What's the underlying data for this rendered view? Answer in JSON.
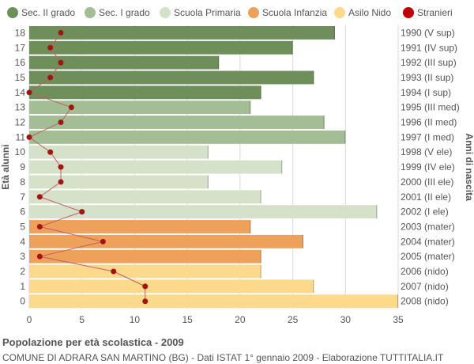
{
  "chart_data": {
    "type": "bar",
    "orientation": "horizontal",
    "title": "Popolazione per età scolastica - 2009",
    "subtitle": "COMUNE DI ADRARA SAN MARTINO (BG) - Dati ISTAT 1° gennaio 2009 - Elaborazione TUTTITALIA.IT",
    "ylabel": "Età alunni",
    "ylabel_right": "Anni di nascita",
    "xlim": [
      0,
      35
    ],
    "xticks": [
      0,
      5,
      10,
      15,
      20,
      25,
      30,
      35
    ],
    "grid": true,
    "legend_position": "top",
    "legend": [
      {
        "label": "Sec. II grado",
        "color": "#6e8f5a"
      },
      {
        "label": "Sec. I grado",
        "color": "#a3bd94"
      },
      {
        "label": "Scuola Primaria",
        "color": "#d5e1c8"
      },
      {
        "label": "Scuola Infanzia",
        "color": "#eda15a"
      },
      {
        "label": "Asilo Nido",
        "color": "#fdd98c"
      },
      {
        "label": "Stranieri",
        "color": "#c00000"
      }
    ],
    "rows": [
      {
        "age": "18",
        "birth": "1990 (V sup)",
        "value": 29,
        "stranieri": 3,
        "group": 0
      },
      {
        "age": "17",
        "birth": "1991 (IV sup)",
        "value": 25,
        "stranieri": 2,
        "group": 0
      },
      {
        "age": "16",
        "birth": "1992 (III sup)",
        "value": 18,
        "stranieri": 3,
        "group": 0
      },
      {
        "age": "15",
        "birth": "1993 (II sup)",
        "value": 27,
        "stranieri": 2,
        "group": 0
      },
      {
        "age": "14",
        "birth": "1994 (I sup)",
        "value": 22,
        "stranieri": 0,
        "group": 0
      },
      {
        "age": "13",
        "birth": "1995 (III med)",
        "value": 21,
        "stranieri": 4,
        "group": 1
      },
      {
        "age": "12",
        "birth": "1996 (II med)",
        "value": 28,
        "stranieri": 3,
        "group": 1
      },
      {
        "age": "11",
        "birth": "1997 (I med)",
        "value": 30,
        "stranieri": 0,
        "group": 1
      },
      {
        "age": "10",
        "birth": "1998 (V ele)",
        "value": 17,
        "stranieri": 2,
        "group": 2
      },
      {
        "age": "9",
        "birth": "1999 (IV ele)",
        "value": 24,
        "stranieri": 3,
        "group": 2
      },
      {
        "age": "8",
        "birth": "2000 (III ele)",
        "value": 17,
        "stranieri": 3,
        "group": 2
      },
      {
        "age": "7",
        "birth": "2001 (II ele)",
        "value": 22,
        "stranieri": 1,
        "group": 2
      },
      {
        "age": "6",
        "birth": "2002 (I ele)",
        "value": 33,
        "stranieri": 5,
        "group": 2
      },
      {
        "age": "5",
        "birth": "2003 (mater)",
        "value": 21,
        "stranieri": 1,
        "group": 3
      },
      {
        "age": "4",
        "birth": "2004 (mater)",
        "value": 26,
        "stranieri": 7,
        "group": 3
      },
      {
        "age": "3",
        "birth": "2005 (mater)",
        "value": 22,
        "stranieri": 1,
        "group": 3
      },
      {
        "age": "2",
        "birth": "2006 (nido)",
        "value": 22,
        "stranieri": 8,
        "group": 4
      },
      {
        "age": "1",
        "birth": "2007 (nido)",
        "value": 27,
        "stranieri": 11,
        "group": 4
      },
      {
        "age": "0",
        "birth": "2008 (nido)",
        "value": 35,
        "stranieri": 11,
        "group": 4
      }
    ]
  },
  "stranieri_line_color": "#c06060",
  "grid_color": "#d9d9d9",
  "label_color": "#555555"
}
